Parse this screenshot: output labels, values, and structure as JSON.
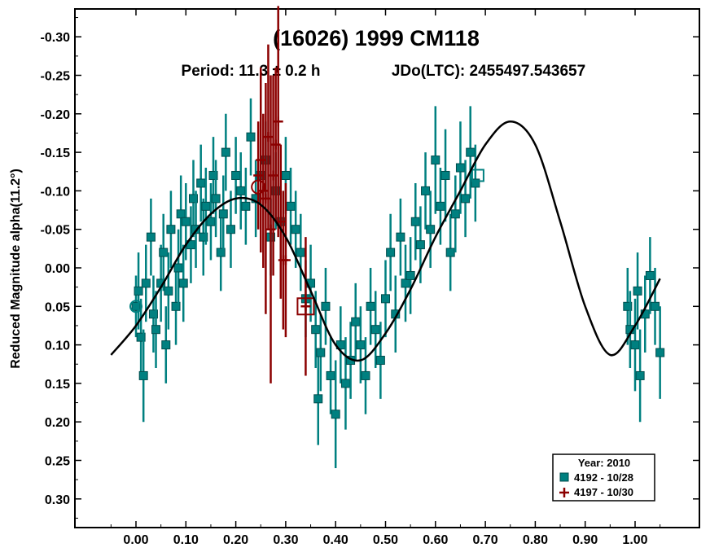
{
  "chart_data": {
    "type": "scatter",
    "title": "(16026) 1999 CM118",
    "period_label": "Period: 11.3 ± 0.2 h",
    "epoch_label": "JDo(LTC): 2455497.543657",
    "xlabel": "",
    "ylabel": "Reduced Magnitude alpha(11.2°)",
    "xlim": [
      -0.1,
      1.13
    ],
    "ylim": [
      -0.35,
      0.345
    ],
    "x_ticks": [
      "0.00",
      "0.10",
      "0.20",
      "0.30",
      "0.40",
      "0.50",
      "0.60",
      "0.70",
      "0.80",
      "0.90",
      "1.00"
    ],
    "y_ticks": [
      "-0.30",
      "-0.25",
      "-0.20",
      "-0.15",
      "-0.10",
      "-0.05",
      "0.00",
      "0.05",
      "0.10",
      "0.15",
      "0.20",
      "0.25",
      "0.30"
    ],
    "y_inverted": true,
    "legend": {
      "title": "Year: 2010",
      "position": "bottom-right",
      "entries": [
        {
          "label": "4192 - 10/28",
          "marker": "square",
          "color": "#008080"
        },
        {
          "label": "4197 - 10/30",
          "marker": "plus",
          "color": "#8b0000"
        }
      ]
    },
    "fit_curve": {
      "name": "Fourier fit",
      "color": "#000000",
      "x": [
        -0.05,
        0.0,
        0.05,
        0.1,
        0.15,
        0.2,
        0.25,
        0.3,
        0.35,
        0.4,
        0.45,
        0.5,
        0.55,
        0.6,
        0.65,
        0.7,
        0.75,
        0.8,
        0.85,
        0.9,
        0.95,
        1.0,
        1.05
      ],
      "y": [
        0.113,
        0.075,
        0.025,
        -0.03,
        -0.07,
        -0.09,
        -0.082,
        -0.04,
        0.03,
        0.1,
        0.12,
        0.085,
        0.028,
        -0.04,
        -0.1,
        -0.16,
        -0.19,
        -0.16,
        -0.06,
        0.05,
        0.113,
        0.075,
        0.014
      ]
    },
    "series": [
      {
        "name": "4192 - 10/28",
        "marker": "square",
        "color": "#008080",
        "x": [
          0.0,
          0.005,
          0.01,
          0.015,
          0.02,
          0.03,
          0.035,
          0.04,
          0.05,
          0.055,
          0.06,
          0.065,
          0.07,
          0.08,
          0.085,
          0.09,
          0.095,
          0.1,
          0.11,
          0.115,
          0.12,
          0.13,
          0.135,
          0.14,
          0.15,
          0.155,
          0.16,
          0.17,
          0.175,
          0.18,
          0.19,
          0.2,
          0.21,
          0.22,
          0.23,
          0.24,
          0.25,
          0.26,
          0.27,
          0.28,
          0.29,
          0.3,
          0.31,
          0.32,
          0.33,
          0.34,
          0.35,
          0.36,
          0.365,
          0.37,
          0.38,
          0.39,
          0.4,
          0.41,
          0.42,
          0.43,
          0.44,
          0.45,
          0.46,
          0.47,
          0.48,
          0.49,
          0.5,
          0.51,
          0.52,
          0.53,
          0.54,
          0.55,
          0.56,
          0.57,
          0.58,
          0.59,
          0.6,
          0.61,
          0.62,
          0.63,
          0.64,
          0.65,
          0.66,
          0.67,
          0.68,
          0.985,
          0.99,
          1.0,
          1.005,
          1.01,
          1.02,
          1.03,
          1.04,
          1.05
        ],
        "y": [
          0.05,
          0.03,
          0.09,
          0.14,
          0.02,
          -0.04,
          0.06,
          0.08,
          0.02,
          -0.02,
          0.1,
          0.03,
          -0.05,
          0.05,
          0.0,
          -0.07,
          0.02,
          -0.06,
          -0.03,
          -0.09,
          -0.05,
          -0.11,
          -0.04,
          -0.08,
          -0.06,
          -0.12,
          -0.09,
          -0.02,
          -0.07,
          -0.15,
          -0.05,
          -0.12,
          -0.1,
          -0.08,
          -0.17,
          -0.09,
          -0.12,
          -0.14,
          -0.04,
          -0.1,
          -0.06,
          -0.12,
          -0.08,
          -0.05,
          -0.02,
          0.04,
          0.02,
          0.08,
          0.17,
          0.11,
          0.05,
          0.14,
          0.19,
          0.1,
          0.15,
          0.12,
          0.07,
          0.1,
          0.14,
          0.05,
          0.08,
          0.12,
          0.04,
          -0.02,
          0.06,
          -0.04,
          0.02,
          0.01,
          -0.06,
          -0.03,
          -0.1,
          -0.05,
          -0.14,
          -0.08,
          -0.12,
          -0.02,
          -0.07,
          -0.13,
          -0.09,
          -0.15,
          -0.11,
          0.05,
          0.08,
          0.1,
          0.03,
          0.14,
          0.06,
          0.01,
          0.05,
          0.11
        ],
        "err": [
          0.04,
          0.05,
          0.05,
          0.06,
          0.05,
          0.05,
          0.05,
          0.05,
          0.05,
          0.05,
          0.05,
          0.05,
          0.05,
          0.05,
          0.05,
          0.05,
          0.05,
          0.05,
          0.05,
          0.05,
          0.05,
          0.05,
          0.05,
          0.05,
          0.05,
          0.05,
          0.05,
          0.05,
          0.05,
          0.05,
          0.05,
          0.05,
          0.05,
          0.05,
          0.05,
          0.05,
          0.05,
          0.05,
          0.05,
          0.05,
          0.05,
          0.05,
          0.05,
          0.05,
          0.05,
          0.05,
          0.05,
          0.05,
          0.06,
          0.05,
          0.05,
          0.05,
          0.07,
          0.05,
          0.06,
          0.05,
          0.05,
          0.05,
          0.05,
          0.05,
          0.05,
          0.05,
          0.05,
          0.05,
          0.05,
          0.05,
          0.05,
          0.05,
          0.05,
          0.05,
          0.05,
          0.05,
          0.07,
          0.05,
          0.06,
          0.05,
          0.05,
          0.06,
          0.05,
          0.06,
          0.05,
          0.05,
          0.05,
          0.06,
          0.05,
          0.06,
          0.05,
          0.05,
          0.05,
          0.06
        ]
      },
      {
        "name": "4197 - 10/30",
        "marker": "plus",
        "color": "#8b0000",
        "x": [
          0.245,
          0.25,
          0.255,
          0.26,
          0.265,
          0.27,
          0.275,
          0.28,
          0.285,
          0.29,
          0.295,
          0.3,
          0.34
        ],
        "y": [
          -0.12,
          -0.14,
          -0.1,
          -0.09,
          -0.17,
          -0.05,
          -0.12,
          -0.16,
          -0.19,
          -0.06,
          -0.01,
          -0.01,
          0.05
        ],
        "err": [
          0.07,
          0.12,
          0.1,
          0.15,
          0.12,
          0.2,
          0.13,
          0.1,
          0.15,
          0.1,
          0.09,
          0.1,
          0.09
        ]
      }
    ]
  }
}
